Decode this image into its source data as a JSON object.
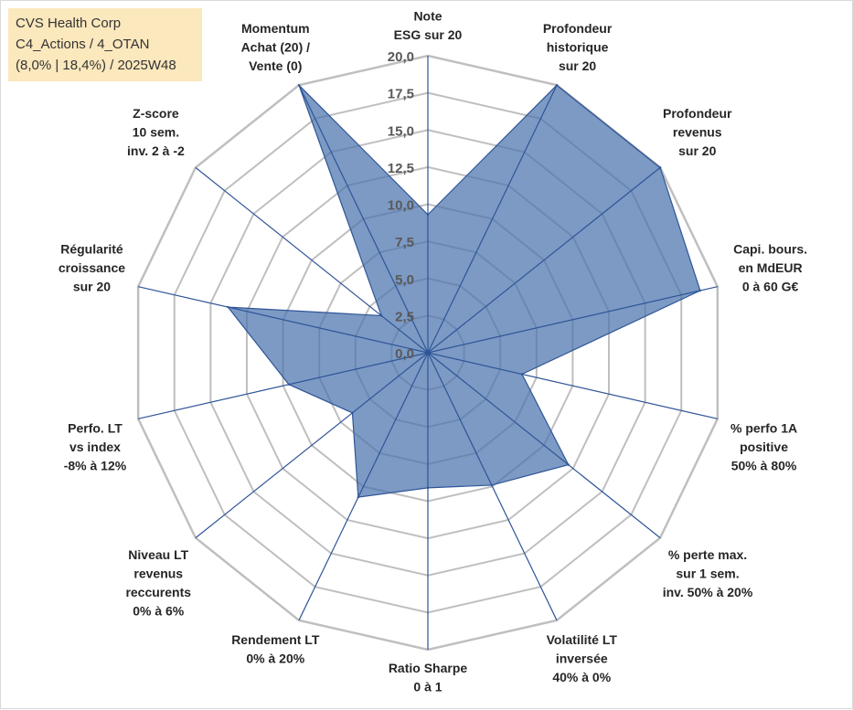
{
  "info": {
    "line1": "CVS Health Corp",
    "line2": "C4_Actions / 4_OTAN",
    "line3": "(8,0% | 18,4%) / 2025W48"
  },
  "chart_data": {
    "type": "radar",
    "title": "",
    "r_range": [
      0,
      20
    ],
    "r_ticks": [
      "0,0",
      "2,5",
      "5,0",
      "7,5",
      "10,0",
      "12,5",
      "15,0",
      "17,5",
      "20,0"
    ],
    "grid": true,
    "axes": [
      {
        "label_lines": [
          "Note",
          "ESG sur 20"
        ]
      },
      {
        "label_lines": [
          "Profondeur",
          "historique",
          "sur 20"
        ]
      },
      {
        "label_lines": [
          "Profondeur",
          "revenus",
          "sur 20"
        ]
      },
      {
        "label_lines": [
          "Capi. bours.",
          "en MdEUR",
          "0 à 60 G€"
        ]
      },
      {
        "label_lines": [
          "% perfo 1A",
          "positive",
          "50% à 80%"
        ]
      },
      {
        "label_lines": [
          "% perte max.",
          "sur 1 sem.",
          "inv. 50% à 20%"
        ]
      },
      {
        "label_lines": [
          "Volatilité LT",
          "inversée",
          "40% à 0%"
        ]
      },
      {
        "label_lines": [
          "Ratio Sharpe",
          "0 à 1"
        ]
      },
      {
        "label_lines": [
          "Rendement LT",
          "0% à 20%"
        ]
      },
      {
        "label_lines": [
          "Niveau LT",
          "revenus",
          "reccurents",
          "0% à 6%"
        ]
      },
      {
        "label_lines": [
          "Perfo. LT",
          "vs index",
          "-8% à 12%"
        ]
      },
      {
        "label_lines": [
          "Régularité",
          "croissance",
          "sur 20"
        ]
      },
      {
        "label_lines": [
          "Z-score",
          "10 sem.",
          "inv. 2 à -2"
        ]
      },
      {
        "label_lines": [
          "Momentum",
          "Achat (20) /",
          "Vente (0)"
        ]
      }
    ],
    "series": [
      {
        "name": "CVS Health Corp",
        "values": [
          9.3,
          20.0,
          20.0,
          18.8,
          6.5,
          12.1,
          9.9,
          9.1,
          10.8,
          6.5,
          9.6,
          13.8,
          4.0,
          20.0
        ]
      }
    ],
    "colors": {
      "fill": "#4a73ad",
      "line": "#2f5597",
      "grid": "#bfbfbf",
      "spoke": "#2f5597"
    }
  }
}
